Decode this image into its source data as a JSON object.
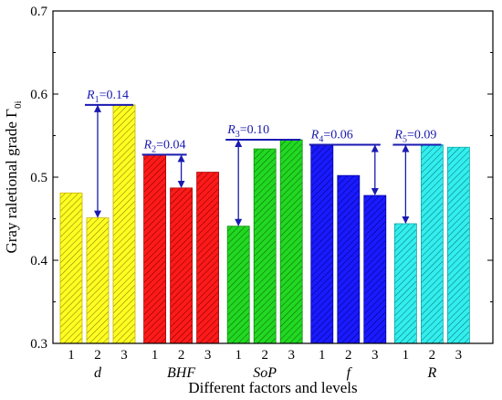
{
  "chart_data": {
    "type": "bar",
    "ylabel": "Gray raletional grade Γ",
    "ylabel_sub": "0i",
    "xlabel": "Different factors and levels",
    "ylim": [
      0.3,
      0.7
    ],
    "yticks": [
      "0.3",
      "0.4",
      "0.5",
      "0.6",
      "0.7"
    ],
    "groups": [
      {
        "name": "d",
        "levels": [
          "1",
          "2",
          "3"
        ],
        "values": [
          0.481,
          0.451,
          0.587
        ],
        "color": "#ffff22",
        "stroke": "#c8b400",
        "hatch": "#8a7a00",
        "range": {
          "label_main": "R",
          "label_sub": "1",
          "label_val": "=0.14"
        }
      },
      {
        "name": "BHF",
        "levels": [
          "1",
          "2",
          "3"
        ],
        "values": [
          0.527,
          0.487,
          0.506
        ],
        "color": "#ff1a1a",
        "stroke": "#b00000",
        "hatch": "#7a0000",
        "range": {
          "label_main": "R",
          "label_sub": "2",
          "label_val": "=0.04"
        }
      },
      {
        "name": "SoP",
        "levels": [
          "1",
          "2",
          "3"
        ],
        "values": [
          0.441,
          0.534,
          0.545
        ],
        "color": "#22d822",
        "stroke": "#0f8f0f",
        "hatch": "#0a6a0a",
        "range": {
          "label_main": "R",
          "label_sub": "3",
          "label_val": "=0.10"
        }
      },
      {
        "name": "f",
        "levels": [
          "1",
          "2",
          "3"
        ],
        "values": [
          0.539,
          0.502,
          0.478
        ],
        "color": "#1a1aff",
        "stroke": "#0000aa",
        "hatch": "#000080",
        "range": {
          "label_main": "R",
          "label_sub": "4",
          "label_val": "=0.06"
        }
      },
      {
        "name": "R",
        "levels": [
          "1",
          "2",
          "3"
        ],
        "values": [
          0.444,
          0.539,
          0.536
        ],
        "color": "#33eeee",
        "stroke": "#10a8a8",
        "hatch": "#087878",
        "range": {
          "label_main": "R",
          "label_sub": "5",
          "label_val": "=0.09"
        }
      }
    ],
    "range_color": "#1a1ab0",
    "grid": false
  }
}
